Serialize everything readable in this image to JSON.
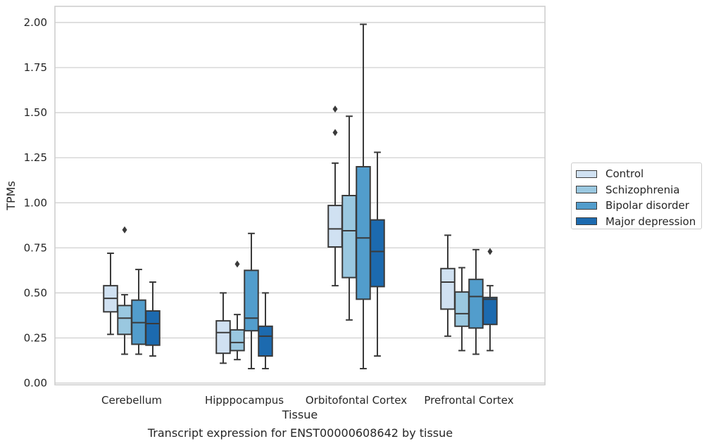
{
  "caption": "Transcript expression for ENST00000608642 by tissue",
  "chart_data": {
    "type": "box",
    "xlabel": "Tissue",
    "ylabel": "TPMs",
    "ylim": [
      0,
      2.08
    ],
    "yticks": [
      "0.00",
      "0.25",
      "0.50",
      "0.75",
      "1.00",
      "1.25",
      "1.50",
      "1.75",
      "2.00"
    ],
    "grid": "horizontal",
    "legend_placement": "right",
    "categories": [
      "Cerebellum",
      "Hipppocampus",
      "Orbitofontal Cortex",
      "Prefrontal Cortex"
    ],
    "series": [
      {
        "name": "Control",
        "color": "#d0e1f2",
        "boxes": [
          {
            "whislo": 0.27,
            "q1": 0.395,
            "med": 0.47,
            "q3": 0.54,
            "whishi": 0.72,
            "fliers": []
          },
          {
            "whislo": 0.11,
            "q1": 0.165,
            "med": 0.28,
            "q3": 0.345,
            "whishi": 0.5,
            "fliers": []
          },
          {
            "whislo": 0.54,
            "q1": 0.755,
            "med": 0.855,
            "q3": 0.985,
            "whishi": 1.22,
            "fliers": [
              1.39,
              1.52
            ]
          },
          {
            "whislo": 0.26,
            "q1": 0.41,
            "med": 0.56,
            "q3": 0.635,
            "whishi": 0.82,
            "fliers": []
          }
        ]
      },
      {
        "name": "Schizophrenia",
        "color": "#9ac8e0",
        "boxes": [
          {
            "whislo": 0.16,
            "q1": 0.27,
            "med": 0.36,
            "q3": 0.43,
            "whishi": 0.49,
            "fliers": [
              0.85
            ]
          },
          {
            "whislo": 0.13,
            "q1": 0.18,
            "med": 0.225,
            "q3": 0.295,
            "whishi": 0.38,
            "fliers": [
              0.66
            ]
          },
          {
            "whislo": 0.35,
            "q1": 0.585,
            "med": 0.845,
            "q3": 1.04,
            "whishi": 1.48,
            "fliers": []
          },
          {
            "whislo": 0.18,
            "q1": 0.315,
            "med": 0.385,
            "q3": 0.505,
            "whishi": 0.64,
            "fliers": []
          }
        ]
      },
      {
        "name": "Bipolar disorder",
        "color": "#529dcc",
        "boxes": [
          {
            "whislo": 0.16,
            "q1": 0.215,
            "med": 0.335,
            "q3": 0.46,
            "whishi": 0.63,
            "fliers": []
          },
          {
            "whislo": 0.08,
            "q1": 0.29,
            "med": 0.36,
            "q3": 0.625,
            "whishi": 0.83,
            "fliers": []
          },
          {
            "whislo": 0.08,
            "q1": 0.465,
            "med": 0.805,
            "q3": 1.2,
            "whishi": 1.99,
            "fliers": []
          },
          {
            "whislo": 0.16,
            "q1": 0.305,
            "med": 0.48,
            "q3": 0.575,
            "whishi": 0.74,
            "fliers": []
          }
        ]
      },
      {
        "name": "Major depression",
        "color": "#1c6aaf",
        "boxes": [
          {
            "whislo": 0.15,
            "q1": 0.21,
            "med": 0.33,
            "q3": 0.4,
            "whishi": 0.56,
            "fliers": []
          },
          {
            "whislo": 0.08,
            "q1": 0.15,
            "med": 0.26,
            "q3": 0.315,
            "whishi": 0.5,
            "fliers": []
          },
          {
            "whislo": 0.15,
            "q1": 0.535,
            "med": 0.73,
            "q3": 0.905,
            "whishi": 1.28,
            "fliers": []
          },
          {
            "whislo": 0.18,
            "q1": 0.325,
            "med": 0.465,
            "q3": 0.475,
            "whishi": 0.54,
            "fliers": [
              0.73
            ]
          }
        ]
      }
    ]
  }
}
